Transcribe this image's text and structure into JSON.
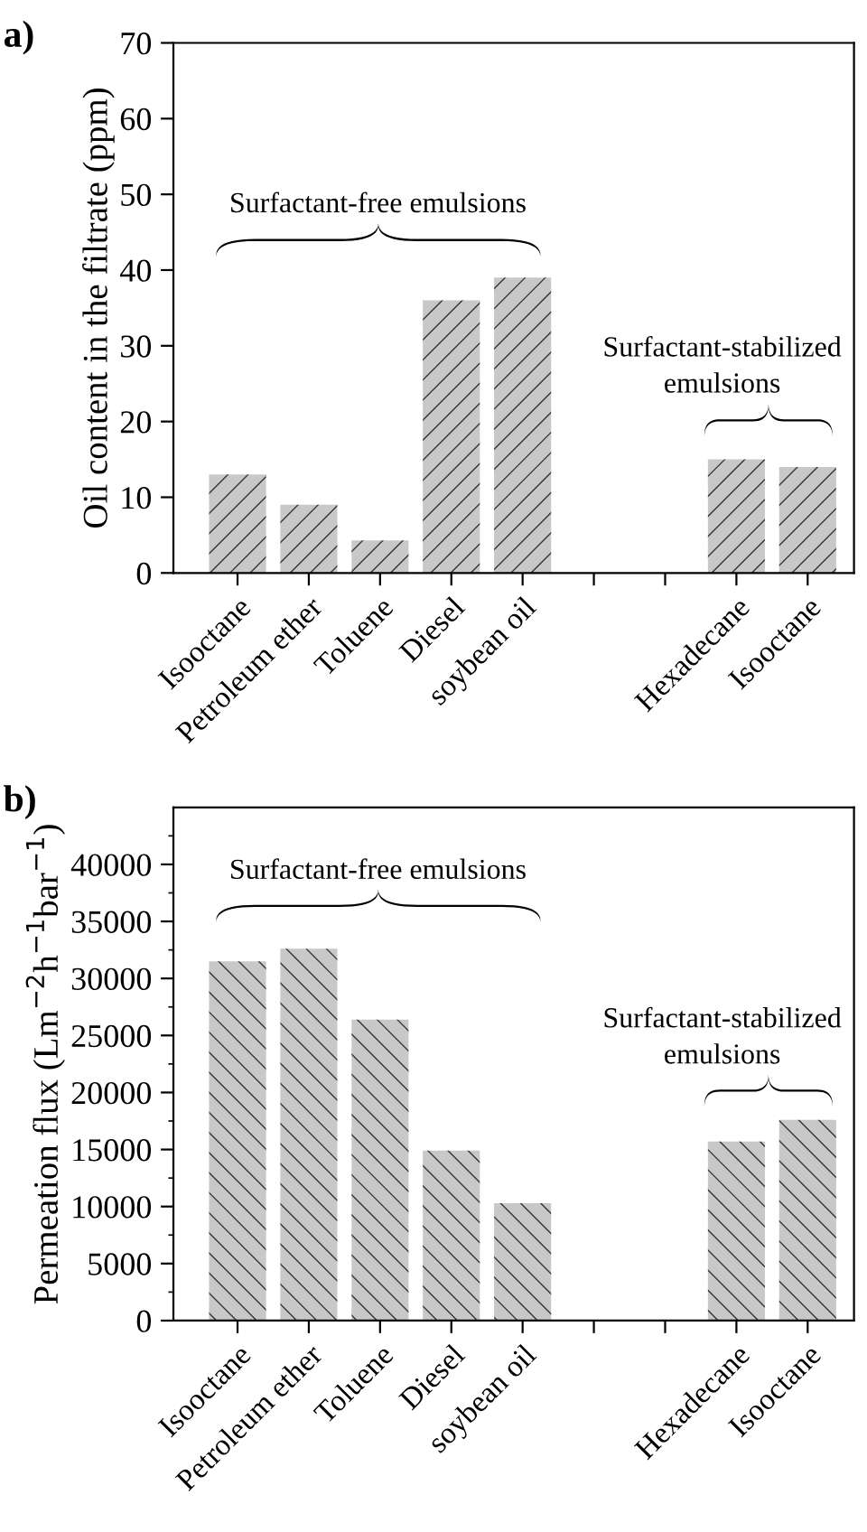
{
  "chart_data": [
    {
      "type": "bar",
      "title": "a)",
      "ylabel": "Oil content in the filtrate (ppm)",
      "categories": [
        "Isooctane",
        "Petroleum ether",
        "Toluene",
        "Diesel",
        "soybean oil",
        null,
        null,
        "Hexadecane",
        "Isooctane"
      ],
      "series": [
        {
          "color": "#c8c8c8",
          "values": [
            13,
            9,
            4.3,
            36,
            39,
            null,
            null,
            15,
            14
          ]
        }
      ],
      "ylim": [
        0,
        70
      ],
      "yticks": [
        0,
        10,
        20,
        30,
        40,
        50,
        60,
        70
      ],
      "grid": false,
      "legend": false,
      "annotations": [
        "Surfactant-free emulsions",
        "Surfactant-stabilized\nemulsions"
      ]
    },
    {
      "type": "bar",
      "title": "b)",
      "ylabel": "Permeation flux (Lm$^{−2}$h$^{−1}$bar$^{−1}$)",
      "categories": [
        "Isooctane",
        "Petroleum ether",
        "Toluene",
        "Diesel",
        "soybean oil",
        null,
        null,
        "Hexadecane",
        "Isooctane"
      ],
      "series": [
        {
          "color": "#c8c8c8",
          "values": [
            31500,
            32600,
            26400,
            14900,
            10300,
            null,
            null,
            15700,
            17600
          ]
        }
      ],
      "ylim": [
        0,
        45000
      ],
      "yticks": [
        0,
        5000,
        10000,
        15000,
        20000,
        25000,
        30000,
        35000,
        40000
      ],
      "grid": false,
      "legend": false,
      "annotations": [
        "Surfactant-free emulsions",
        "Surfactant-stabilized\nemulsions"
      ]
    }
  ]
}
